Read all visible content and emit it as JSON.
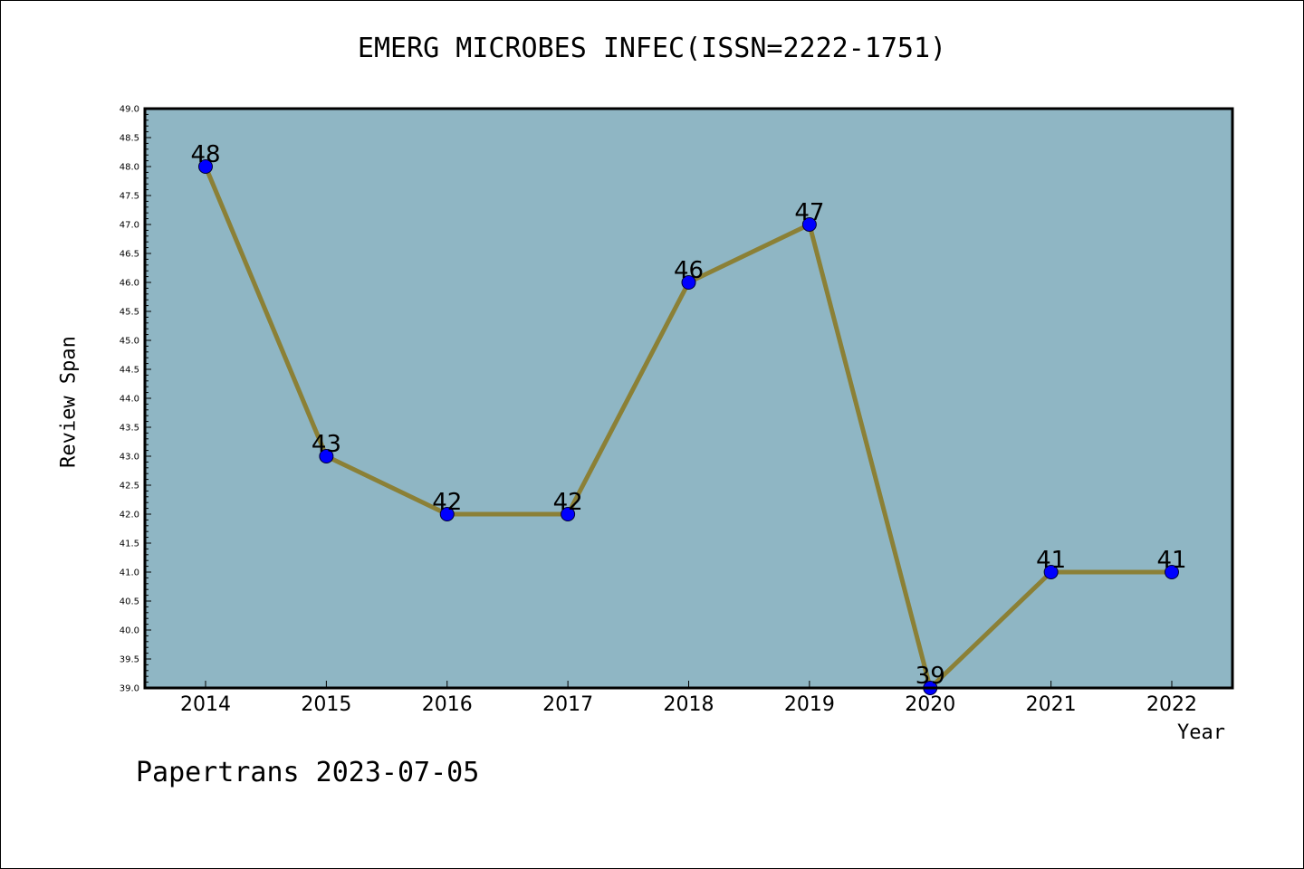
{
  "chart_data": {
    "type": "line",
    "title": "EMERG MICROBES INFEC(ISSN=2222-1751)",
    "xlabel": "Year",
    "ylabel": "Review Span",
    "categories": [
      "2014",
      "2015",
      "2016",
      "2017",
      "2018",
      "2019",
      "2020",
      "2021",
      "2022"
    ],
    "series": [
      {
        "values": [
          48,
          43,
          42,
          42,
          46,
          47,
          39,
          41,
          41
        ]
      }
    ],
    "data_labels": [
      "48",
      "43",
      "42",
      "42",
      "46",
      "47",
      "39",
      "41",
      "41"
    ],
    "ylim": [
      39.0,
      49.0
    ],
    "y_ticks": [
      "39.0",
      "39.5",
      "40.0",
      "40.5",
      "41.0",
      "41.5",
      "42.0",
      "42.5",
      "43.0",
      "43.5",
      "44.0",
      "44.5",
      "45.0",
      "45.5",
      "46.0",
      "46.5",
      "47.0",
      "47.5",
      "48.0",
      "48.5",
      "49.0"
    ],
    "grid": false,
    "colors": {
      "plot_background": "#8fb6c4",
      "line": "#8b8036",
      "marker": "#0000ff"
    }
  },
  "footer": {
    "text": "Papertrans 2023-07-05"
  }
}
